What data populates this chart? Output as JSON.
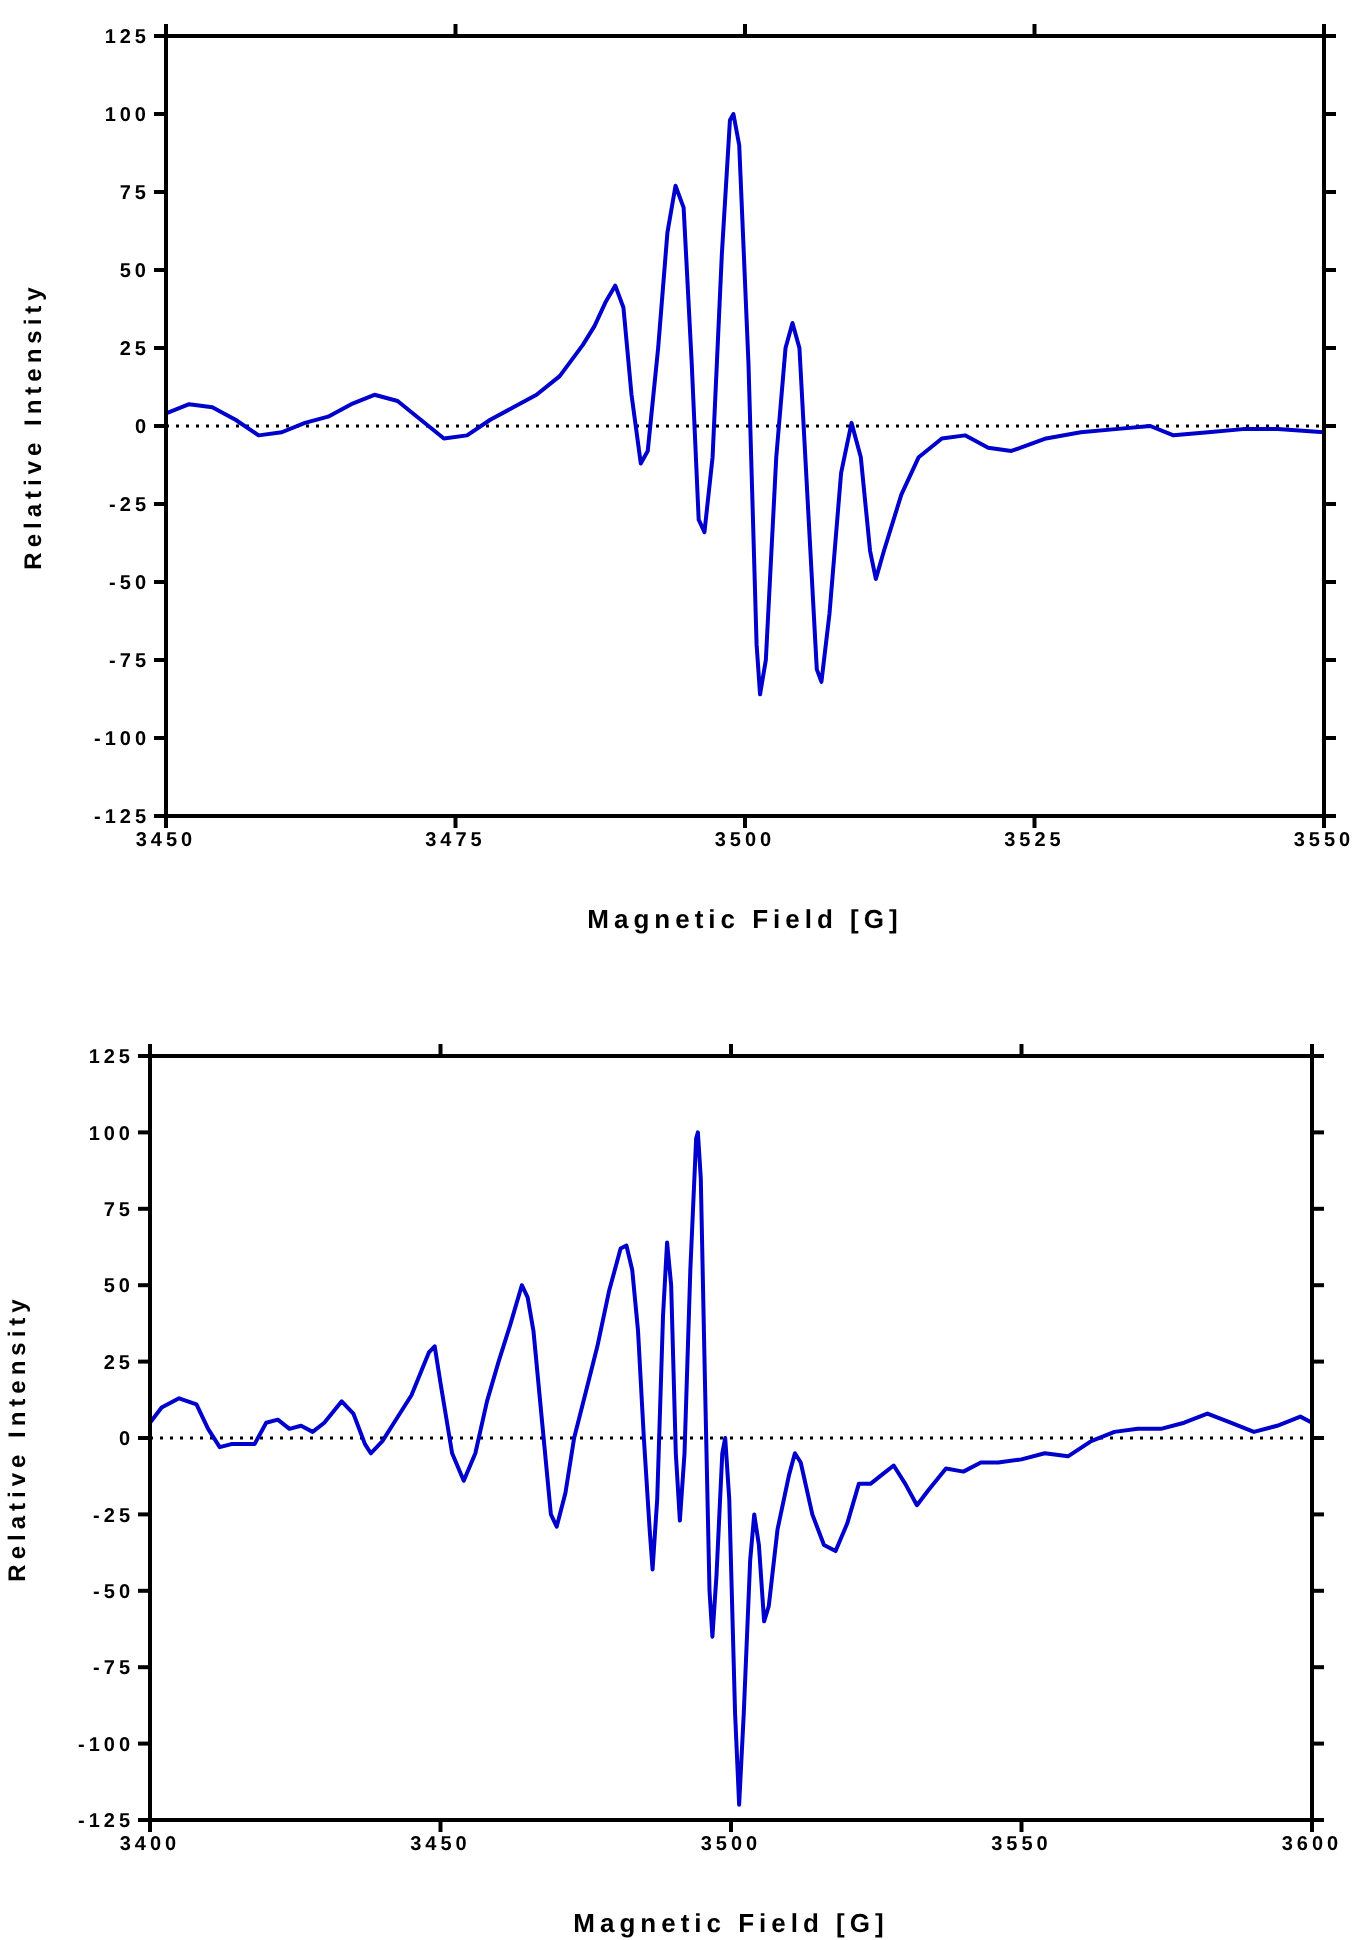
{
  "chart_data": [
    {
      "type": "line",
      "xlabel": "Magnetic Field [G]",
      "ylabel": "Relative Intensity",
      "xlim": [
        3450,
        3550
      ],
      "xticks": [
        3450,
        3475,
        3500,
        3525,
        3550
      ],
      "ylim": [
        -125,
        125
      ],
      "yticks": [
        -125,
        -100,
        -75,
        -50,
        -25,
        0,
        25,
        50,
        75,
        100,
        125
      ],
      "ref_lines": [
        {
          "axis": "y",
          "value": 0,
          "color": "#000000",
          "line_style": "dotted"
        }
      ],
      "series": [
        {
          "color": "#0000cc",
          "x": [
            3450,
            3452,
            3454,
            3456,
            3458,
            3460,
            3462,
            3464,
            3466,
            3468,
            3470,
            3472,
            3474,
            3476,
            3478,
            3480,
            3482,
            3484,
            3486,
            3487,
            3488,
            3488.8,
            3489.5,
            3490.2,
            3491,
            3491.6,
            3492.5,
            3493.3,
            3494,
            3494.7,
            3495.4,
            3496,
            3496.5,
            3497.2,
            3498,
            3498.7,
            3499,
            3499.5,
            3500.3,
            3501,
            3501.3,
            3501.8,
            3502.7,
            3503.5,
            3504.1,
            3504.7,
            3505.5,
            3506.2,
            3506.6,
            3507.3,
            3508.3,
            3509.2,
            3510,
            3510.8,
            3511.3,
            3512,
            3513.5,
            3515,
            3517,
            3519,
            3521,
            3523,
            3526,
            3529,
            3532,
            3535,
            3537,
            3540,
            3543,
            3546,
            3550
          ],
          "values": [
            4,
            7,
            6,
            2,
            -3,
            -2,
            1,
            3,
            7,
            10,
            8,
            2,
            -4,
            -3,
            2,
            6,
            10,
            16,
            26,
            32,
            40,
            45,
            38,
            10,
            -12,
            -8,
            25,
            62,
            77,
            70,
            20,
            -30,
            -34,
            -10,
            55,
            98,
            100,
            90,
            20,
            -70,
            -86,
            -75,
            -10,
            25,
            33,
            25,
            -30,
            -78,
            -82,
            -60,
            -15,
            1,
            -10,
            -40,
            -49,
            -40,
            -22,
            -10,
            -4,
            -3,
            -7,
            -8,
            -4,
            -2,
            -1,
            0,
            -3,
            -2,
            -1,
            -1,
            -2
          ]
        }
      ]
    },
    {
      "type": "line",
      "xlabel": "Magnetic Field [G]",
      "ylabel": "Relative Intensity",
      "xlim": [
        3400,
        3600
      ],
      "xticks": [
        3400,
        3450,
        3500,
        3550,
        3600
      ],
      "ylim": [
        -125,
        125
      ],
      "yticks": [
        -125,
        -100,
        -75,
        -50,
        -25,
        0,
        25,
        50,
        75,
        100,
        125
      ],
      "ref_lines": [
        {
          "axis": "y",
          "value": 0,
          "color": "#000000",
          "line_style": "dotted"
        }
      ],
      "series": [
        {
          "color": "#0000cc",
          "x": [
            3400,
            3402,
            3405,
            3408,
            3410,
            3412,
            3414,
            3416,
            3418,
            3420,
            3422,
            3424,
            3426,
            3428,
            3430,
            3433,
            3435,
            3437,
            3438,
            3440,
            3442,
            3445,
            3448,
            3449,
            3450,
            3452,
            3454,
            3456,
            3458,
            3460,
            3462,
            3464,
            3465,
            3466,
            3467.5,
            3469,
            3470,
            3471.5,
            3473,
            3475,
            3477,
            3479,
            3481,
            3482,
            3483,
            3484,
            3485,
            3486,
            3486.5,
            3487.3,
            3488.3,
            3489,
            3489.7,
            3490.5,
            3491.2,
            3492,
            3493,
            3494,
            3494.3,
            3494.8,
            3495.5,
            3496.3,
            3496.8,
            3497.5,
            3498.5,
            3499,
            3499.7,
            3500.7,
            3501.4,
            3502.2,
            3503.3,
            3504,
            3504.8,
            3505.7,
            3506.5,
            3508,
            3510,
            3511,
            3512,
            3514,
            3516,
            3518,
            3520,
            3522,
            3524,
            3526,
            3528,
            3530,
            3532,
            3534,
            3537,
            3540,
            3543,
            3546,
            3550,
            3554,
            3558,
            3562,
            3566,
            3570,
            3574,
            3578,
            3582,
            3586,
            3590,
            3594,
            3598,
            3600
          ],
          "values": [
            5,
            10,
            13,
            11,
            3,
            -3,
            -2,
            -2,
            -2,
            5,
            6,
            3,
            4,
            2,
            5,
            12,
            8,
            -2,
            -5,
            -1,
            5,
            14,
            28,
            30,
            18,
            -5,
            -14,
            -5,
            12,
            25,
            37,
            50,
            46,
            35,
            5,
            -25,
            -29,
            -18,
            0,
            15,
            30,
            48,
            62,
            63,
            55,
            35,
            0,
            -30,
            -43,
            -20,
            40,
            64,
            50,
            -5,
            -27,
            -5,
            55,
            98,
            100,
            85,
            20,
            -50,
            -65,
            -45,
            -5,
            0,
            -20,
            -90,
            -120,
            -90,
            -40,
            -25,
            -35,
            -60,
            -55,
            -30,
            -12,
            -5,
            -8,
            -25,
            -35,
            -37,
            -28,
            -15,
            -15,
            -12,
            -9,
            -15,
            -22,
            -17,
            -10,
            -11,
            -8,
            -8,
            -7,
            -5,
            -6,
            -1,
            2,
            3,
            3,
            5,
            8,
            5,
            2,
            4,
            7,
            5
          ]
        }
      ]
    }
  ]
}
